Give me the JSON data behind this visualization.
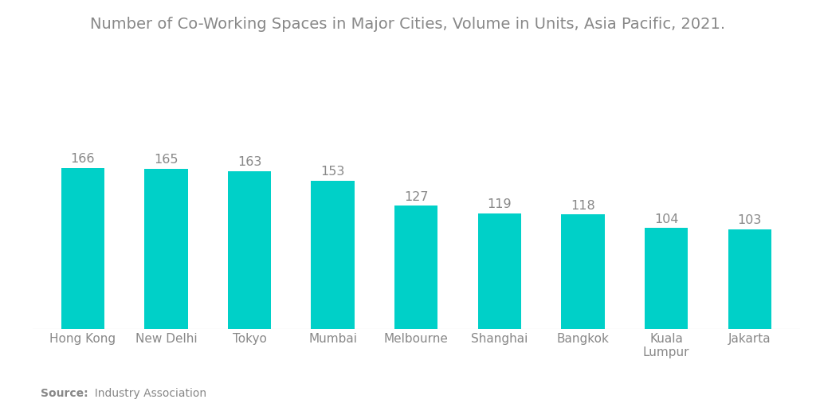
{
  "title": "Number of Co-Working Spaces in Major Cities, Volume in Units, Asia Pacific, 2021.",
  "categories": [
    "Hong Kong",
    "New Delhi",
    "Tokyo",
    "Mumbai",
    "Melbourne",
    "Shanghai",
    "Bangkok",
    "Kuala\nLumpur",
    "Jakarta"
  ],
  "values": [
    166,
    165,
    163,
    153,
    127,
    119,
    118,
    104,
    103
  ],
  "bar_color": "#00D0C8",
  "title_fontsize": 14,
  "label_fontsize": 11,
  "value_fontsize": 11.5,
  "source_bold": "Source:",
  "source_regular": "  Industry Association",
  "background_color": "#ffffff",
  "text_color": "#888888",
  "ylim": [
    0,
    280
  ],
  "bar_width": 0.52
}
